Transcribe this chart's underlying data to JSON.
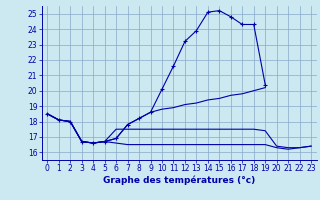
{
  "title": "Graphe des températures (°c)",
  "background_color": "#cce8f0",
  "grid_color": "#88aacc",
  "line_color": "#0000aa",
  "xlim": [
    -0.5,
    23.5
  ],
  "ylim": [
    15.5,
    25.5
  ],
  "yticks": [
    16,
    17,
    18,
    19,
    20,
    21,
    22,
    23,
    24,
    25
  ],
  "xticks": [
    0,
    1,
    2,
    3,
    4,
    5,
    6,
    7,
    8,
    9,
    10,
    11,
    12,
    13,
    14,
    15,
    16,
    17,
    18,
    19,
    20,
    21,
    22,
    23
  ],
  "series": [
    {
      "x": [
        0,
        1,
        2,
        3,
        4,
        5,
        6,
        7,
        8,
        9,
        10,
        11,
        12,
        13,
        14,
        15,
        16,
        17,
        18,
        19
      ],
      "y": [
        18.5,
        18.1,
        18.0,
        16.7,
        16.6,
        16.7,
        16.9,
        17.8,
        18.2,
        18.6,
        20.1,
        21.6,
        23.2,
        23.9,
        25.1,
        25.2,
        24.8,
        24.3,
        24.3,
        20.4
      ],
      "marker": "+"
    },
    {
      "x": [
        0,
        1,
        2,
        3,
        4,
        5,
        6,
        7,
        8,
        9,
        10,
        11,
        12,
        13,
        14,
        15,
        16,
        17,
        18,
        19
      ],
      "y": [
        18.5,
        18.1,
        18.0,
        16.7,
        16.6,
        16.7,
        16.9,
        17.8,
        18.2,
        18.6,
        18.8,
        18.9,
        19.1,
        19.2,
        19.4,
        19.5,
        19.7,
        19.8,
        20.0,
        20.2
      ],
      "marker": null
    },
    {
      "x": [
        0,
        1,
        2,
        3,
        4,
        5,
        6,
        7,
        8,
        9,
        10,
        11,
        12,
        13,
        14,
        15,
        16,
        17,
        18,
        19,
        20,
        21,
        22,
        23
      ],
      "y": [
        18.5,
        18.1,
        18.0,
        16.7,
        16.6,
        16.7,
        17.5,
        17.5,
        17.5,
        17.5,
        17.5,
        17.5,
        17.5,
        17.5,
        17.5,
        17.5,
        17.5,
        17.5,
        17.5,
        17.4,
        16.4,
        16.3,
        16.3,
        16.4
      ],
      "marker": null
    },
    {
      "x": [
        0,
        1,
        2,
        3,
        4,
        5,
        6,
        7,
        8,
        9,
        10,
        11,
        12,
        13,
        14,
        15,
        16,
        17,
        18,
        19,
        20,
        21,
        22,
        23
      ],
      "y": [
        18.5,
        18.1,
        18.0,
        16.7,
        16.6,
        16.7,
        16.6,
        16.5,
        16.5,
        16.5,
        16.5,
        16.5,
        16.5,
        16.5,
        16.5,
        16.5,
        16.5,
        16.5,
        16.5,
        16.5,
        16.3,
        16.2,
        16.3,
        16.4
      ],
      "marker": null
    }
  ]
}
